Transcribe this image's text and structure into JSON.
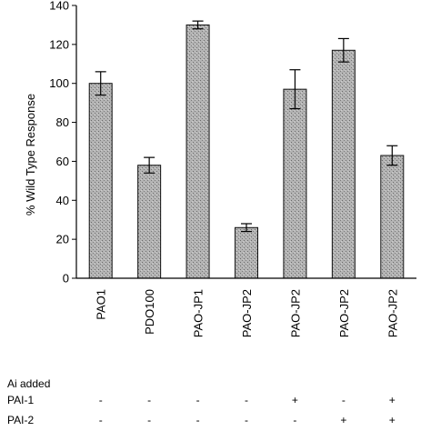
{
  "chart_data": {
    "type": "bar",
    "ylabel": "% Wild Type Response",
    "ylim": [
      0,
      140
    ],
    "yticks": [
      0,
      20,
      40,
      60,
      80,
      100,
      120,
      140
    ],
    "categories": [
      "PAO1",
      "PDO100",
      "PAO-JP1",
      "PAO-JP2",
      "PAO-JP2",
      "PAO-JP2",
      "PAO-JP2"
    ],
    "values": [
      100,
      58,
      130,
      26,
      97,
      117,
      63
    ],
    "errors": [
      6,
      4,
      2,
      2,
      10,
      6,
      5
    ],
    "bar_color": "#a8a8a8",
    "table": {
      "title": "Ai added",
      "rows": [
        {
          "label": "PAI-1",
          "marks": [
            "-",
            "-",
            "-",
            "-",
            "+",
            "-",
            "+"
          ]
        },
        {
          "label": "PAI-2",
          "marks": [
            "-",
            "-",
            "-",
            "-",
            "-",
            "+",
            "+"
          ]
        }
      ]
    }
  }
}
